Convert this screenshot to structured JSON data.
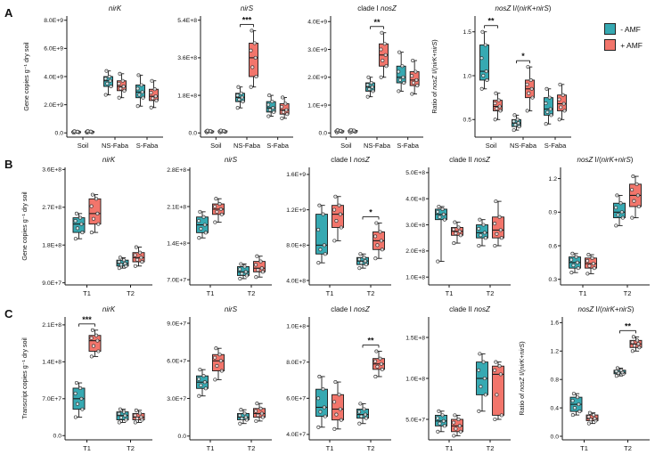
{
  "panels": {
    "a": "A",
    "b": "B",
    "c": "C"
  },
  "legend": {
    "items": [
      {
        "key": "neg",
        "label": "- AMF"
      },
      {
        "key": "pos",
        "label": "+ AMF"
      }
    ]
  },
  "colors": {
    "neg": "#36A9B2",
    "pos": "#F2756B",
    "axis": "#1a1a1a"
  },
  "chart_data": [
    {
      "id": "a-nirk",
      "panel": "A",
      "type": "box",
      "title": [
        [
          "nirK",
          1
        ]
      ],
      "ylabel": [
        [
          "Gene copies g⁻¹ dry soil",
          0
        ]
      ],
      "ylim": [
        -300000000.0,
        8300000000.0
      ],
      "yticks": [
        [
          0,
          "0.0"
        ],
        [
          2000000000.0,
          "2.0E+9"
        ],
        [
          4000000000.0,
          "4.0E+9"
        ],
        [
          6000000000.0,
          "6.0E+9"
        ],
        [
          8000000000.0,
          "8.0E+9"
        ]
      ],
      "cats": [
        "Soil",
        "NS-Faba",
        "S-Faba"
      ],
      "neg": [
        [
          20000000.0,
          40000000.0,
          60000000.0,
          90000000.0,
          120000000.0
        ],
        [
          2700000000.0,
          3300000000.0,
          3700000000.0,
          4000000000.0,
          4400000000.0
        ],
        [
          1900000000.0,
          2500000000.0,
          2900000000.0,
          3400000000.0,
          4100000000.0
        ]
      ],
      "pos": [
        [
          20000000.0,
          40000000.0,
          70000000.0,
          100000000.0,
          130000000.0
        ],
        [
          2500000000.0,
          3000000000.0,
          3300000000.0,
          3700000000.0,
          4200000000.0
        ],
        [
          1800000000.0,
          2300000000.0,
          2600000000.0,
          3100000000.0,
          3700000000.0
        ]
      ],
      "sig": []
    },
    {
      "id": "a-nirs",
      "panel": "A",
      "type": "box",
      "title": [
        [
          "nirS",
          1
        ]
      ],
      "ylabel": null,
      "ylim": [
        -20000000.0,
        560000000.0
      ],
      "yticks": [
        [
          0,
          "0.0"
        ],
        [
          180000000.0,
          "1.8E+8"
        ],
        [
          360000000.0,
          "3.6E+8"
        ],
        [
          540000000.0,
          "5.4E+8"
        ]
      ],
      "cats": [
        "Soil",
        "NS-Faba",
        "S-Faba"
      ],
      "neg": [
        [
          3000000.0,
          5000000.0,
          7000000.0,
          9000000.0,
          11000000.0
        ],
        [
          120000000.0,
          150000000.0,
          170000000.0,
          190000000.0,
          220000000.0
        ],
        [
          80000000.0,
          100000000.0,
          120000000.0,
          150000000.0,
          180000000.0
        ]
      ],
      "pos": [
        [
          3000000.0,
          5000000.0,
          7000000.0,
          10000000.0,
          12000000.0
        ],
        [
          220000000.0,
          270000000.0,
          360000000.0,
          430000000.0,
          490000000.0
        ],
        [
          70000000.0,
          90000000.0,
          110000000.0,
          140000000.0,
          170000000.0
        ]
      ],
      "sig": [
        [
          1,
          "***"
        ]
      ]
    },
    {
      "id": "a-clade1-nosz",
      "panel": "A",
      "type": "box",
      "title": [
        [
          "clade I ",
          0
        ],
        [
          "nosZ",
          1
        ]
      ],
      "ylabel": null,
      "ylim": [
        -150000000.0,
        4200000000.0
      ],
      "yticks": [
        [
          0,
          "0.0"
        ],
        [
          1000000000.0,
          "1.0E+9"
        ],
        [
          2000000000.0,
          "2.0E+9"
        ],
        [
          3000000000.0,
          "3.0E+9"
        ],
        [
          4000000000.0,
          "4.0E+9"
        ]
      ],
      "cats": [
        "Soil",
        "NS-Faba",
        "S-Faba"
      ],
      "neg": [
        [
          20000000.0,
          40000000.0,
          60000000.0,
          80000000.0,
          100000000.0
        ],
        [
          1300000000.0,
          1500000000.0,
          1650000000.0,
          1800000000.0,
          2000000000.0
        ],
        [
          1500000000.0,
          1800000000.0,
          2000000000.0,
          2400000000.0,
          2900000000.0
        ]
      ],
      "pos": [
        [
          20000000.0,
          40000000.0,
          60000000.0,
          90000000.0,
          110000000.0
        ],
        [
          2000000000.0,
          2400000000.0,
          2800000000.0,
          3200000000.0,
          3600000000.0
        ],
        [
          1400000000.0,
          1700000000.0,
          1900000000.0,
          2200000000.0,
          2600000000.0
        ]
      ],
      "sig": [
        [
          1,
          "**"
        ]
      ]
    },
    {
      "id": "a-ratio",
      "panel": "A",
      "type": "box",
      "title": [
        [
          "nosZ",
          1
        ],
        [
          " I/(",
          0
        ],
        [
          "nirK",
          1
        ],
        [
          "+",
          0
        ],
        [
          "nirS",
          1
        ],
        [
          ")",
          0
        ]
      ],
      "ylabel": [
        [
          "Ratio of ",
          0
        ],
        [
          "nosZ",
          1
        ],
        [
          " I/(",
          0
        ],
        [
          "nirK",
          1
        ],
        [
          "+",
          0
        ],
        [
          "nirS",
          1
        ],
        [
          ")",
          0
        ]
      ],
      "ylim": [
        0.3,
        1.68
      ],
      "yticks": [
        [
          0.5,
          "0.5"
        ],
        [
          1.0,
          "1.0"
        ],
        [
          1.5,
          "1.5"
        ]
      ],
      "cats": [
        "Soil",
        "NS-Faba",
        "S-Faba"
      ],
      "neg": [
        [
          0.85,
          0.95,
          1.05,
          1.35,
          1.5
        ],
        [
          0.38,
          0.42,
          0.46,
          0.5,
          0.55
        ],
        [
          0.45,
          0.55,
          0.62,
          0.75,
          0.85
        ]
      ],
      "pos": [
        [
          0.5,
          0.6,
          0.65,
          0.72,
          0.8
        ],
        [
          0.6,
          0.75,
          0.85,
          0.95,
          1.1
        ],
        [
          0.5,
          0.6,
          0.68,
          0.78,
          0.9
        ]
      ],
      "sig": [
        [
          0,
          "**"
        ],
        [
          1,
          "*"
        ]
      ]
    },
    {
      "id": "b-nirk",
      "panel": "B",
      "type": "box",
      "title": [
        [
          "nirK",
          1
        ]
      ],
      "ylabel": [
        [
          "Gene copies g⁻¹ dry soil",
          0
        ]
      ],
      "ylim": [
        85000000.0,
        365000000.0
      ],
      "yticks": [
        [
          90000000.0,
          "9.0E+7"
        ],
        [
          180000000.0,
          "1.8E+8"
        ],
        [
          270000000.0,
          "2.7E+8"
        ],
        [
          360000000.0,
          "3.6E+8"
        ]
      ],
      "cats": [
        "T1",
        "T2"
      ],
      "neg": [
        [
          195000000.0,
          210000000.0,
          230000000.0,
          245000000.0,
          255000000.0
        ],
        [
          125000000.0,
          130000000.0,
          136000000.0,
          144000000.0,
          150000000.0
        ]
      ],
      "pos": [
        [
          210000000.0,
          230000000.0,
          255000000.0,
          290000000.0,
          300000000.0
        ],
        [
          130000000.0,
          140000000.0,
          150000000.0,
          162000000.0,
          175000000.0
        ]
      ],
      "sig": []
    },
    {
      "id": "b-nirs",
      "panel": "B",
      "type": "box",
      "title": [
        [
          "nirS",
          1
        ]
      ],
      "ylabel": null,
      "ylim": [
        60000000.0,
        285000000.0
      ],
      "yticks": [
        [
          70000000.0,
          "7.0E+7"
        ],
        [
          140000000.0,
          "1.4E+8"
        ],
        [
          210000000.0,
          "2.1E+8"
        ],
        [
          280000000.0,
          "2.8E+8"
        ]
      ],
      "cats": [
        "T1",
        "T2"
      ],
      "neg": [
        [
          150000000.0,
          160000000.0,
          175000000.0,
          190000000.0,
          200000000.0
        ],
        [
          72000000.0,
          78000000.0,
          85000000.0,
          95000000.0,
          100000000.0
        ]
      ],
      "pos": [
        [
          180000000.0,
          195000000.0,
          205000000.0,
          215000000.0,
          225000000.0
        ],
        [
          75000000.0,
          85000000.0,
          92000000.0,
          105000000.0,
          115000000.0
        ]
      ],
      "sig": []
    },
    {
      "id": "b-clade1-nosz",
      "panel": "B",
      "type": "box",
      "title": [
        [
          "clade I ",
          0
        ],
        [
          "nosZ",
          1
        ]
      ],
      "ylabel": null,
      "ylim": [
        350000000.0,
        1680000000.0
      ],
      "yticks": [
        [
          400000000.0,
          "4.0E+8"
        ],
        [
          800000000.0,
          "8.0E+8"
        ],
        [
          1200000000.0,
          "1.2E+9"
        ],
        [
          1600000000.0,
          "1.6E+9"
        ]
      ],
      "cats": [
        "T1",
        "T2"
      ],
      "neg": [
        [
          600000000.0,
          700000000.0,
          800000000.0,
          1150000000.0,
          1250000000.0
        ],
        [
          540000000.0,
          580000000.0,
          620000000.0,
          660000000.0,
          700000000.0
        ]
      ],
      "pos": [
        [
          850000000.0,
          1000000000.0,
          1150000000.0,
          1250000000.0,
          1350000000.0
        ],
        [
          650000000.0,
          750000000.0,
          850000000.0,
          950000000.0,
          1050000000.0
        ]
      ],
      "sig": [
        [
          1,
          "*"
        ]
      ]
    },
    {
      "id": "b-clade2-nosz",
      "panel": "B",
      "type": "box",
      "title": [
        [
          "clade II ",
          0
        ],
        [
          "nosZ",
          1
        ]
      ],
      "ylabel": null,
      "ylim": [
        70000000.0,
        520000000.0
      ],
      "yticks": [
        [
          100000000.0,
          "1.0E+8"
        ],
        [
          200000000.0,
          "2.0E+8"
        ],
        [
          300000000.0,
          "3.0E+8"
        ],
        [
          400000000.0,
          "4.0E+8"
        ],
        [
          500000000.0,
          "5.0E+8"
        ]
      ],
      "cats": [
        "T1",
        "T2"
      ],
      "neg": [
        [
          160000000.0,
          320000000.0,
          340000000.0,
          360000000.0,
          370000000.0
        ],
        [
          220000000.0,
          250000000.0,
          270000000.0,
          300000000.0,
          320000000.0
        ]
      ],
      "pos": [
        [
          230000000.0,
          260000000.0,
          275000000.0,
          290000000.0,
          310000000.0
        ],
        [
          220000000.0,
          250000000.0,
          280000000.0,
          330000000.0,
          390000000.0
        ]
      ],
      "sig": []
    },
    {
      "id": "b-ratio",
      "panel": "B",
      "type": "box",
      "title": [
        [
          "nosZ",
          1
        ],
        [
          " I/(",
          0
        ],
        [
          "nirK",
          1
        ],
        [
          "+",
          0
        ],
        [
          "nirS",
          1
        ],
        [
          ")",
          0
        ]
      ],
      "ylabel": null,
      "ylim": [
        0.25,
        1.3
      ],
      "yticks": [
        [
          0.3,
          "0.3"
        ],
        [
          0.6,
          "0.6"
        ],
        [
          0.9,
          "0.9"
        ],
        [
          1.2,
          "1.2"
        ]
      ],
      "cats": [
        "T1",
        "T2"
      ],
      "neg": [
        [
          0.36,
          0.4,
          0.45,
          0.5,
          0.53
        ],
        [
          0.78,
          0.85,
          0.9,
          0.98,
          1.05
        ]
      ],
      "pos": [
        [
          0.35,
          0.4,
          0.44,
          0.49,
          0.52
        ],
        [
          0.85,
          0.95,
          1.05,
          1.15,
          1.22
        ]
      ],
      "sig": []
    },
    {
      "id": "c-nirk",
      "panel": "C",
      "type": "box",
      "title": [
        [
          "nirK",
          1
        ]
      ],
      "ylabel": [
        [
          "Transcript copies g⁻¹ dry soil",
          0
        ]
      ],
      "ylim": [
        -8000000.0,
        225000000.0
      ],
      "yticks": [
        [
          0,
          "0.0"
        ],
        [
          70000000.0,
          "7.0E+7"
        ],
        [
          140000000.0,
          "1.4E+8"
        ],
        [
          210000000.0,
          "2.1E+8"
        ]
      ],
      "cats": [
        "T1",
        "T2"
      ],
      "neg": [
        [
          35000000.0,
          50000000.0,
          70000000.0,
          90000000.0,
          100000000.0
        ],
        [
          25000000.0,
          30000000.0,
          38000000.0,
          45000000.0,
          50000000.0
        ]
      ],
      "pos": [
        [
          150000000.0,
          160000000.0,
          180000000.0,
          190000000.0,
          200000000.0
        ],
        [
          25000000.0,
          30000000.0,
          35000000.0,
          42000000.0,
          48000000.0
        ]
      ],
      "sig": [
        [
          0,
          "***"
        ]
      ]
    },
    {
      "id": "c-nirs",
      "panel": "C",
      "type": "box",
      "title": [
        [
          "nirS",
          1
        ]
      ],
      "ylabel": null,
      "ylim": [
        -3000000.0,
        95000000.0
      ],
      "yticks": [
        [
          0,
          "0.0"
        ],
        [
          30000000.0,
          "3.0E+7"
        ],
        [
          60000000.0,
          "6.0E+7"
        ],
        [
          90000000.0,
          "9.0E+7"
        ]
      ],
      "cats": [
        "T1",
        "T2"
      ],
      "neg": [
        [
          32000000.0,
          38000000.0,
          43000000.0,
          48000000.0,
          53000000.0
        ],
        [
          10000000.0,
          13000000.0,
          15000000.0,
          18000000.0,
          21000000.0
        ]
      ],
      "pos": [
        [
          45000000.0,
          52000000.0,
          60000000.0,
          65000000.0,
          70000000.0
        ],
        [
          12000000.0,
          15000000.0,
          18000000.0,
          22000000.0,
          26000000.0
        ]
      ],
      "sig": []
    },
    {
      "id": "c-clade1-nosz",
      "panel": "C",
      "type": "box",
      "title": [
        [
          "clade I ",
          0
        ],
        [
          "nosZ",
          1
        ]
      ],
      "ylabel": null,
      "ylim": [
        37000000.0,
        105000000.0
      ],
      "yticks": [
        [
          40000000.0,
          "4.0E+7"
        ],
        [
          60000000.0,
          "6.0E+7"
        ],
        [
          80000000.0,
          "8.0E+7"
        ],
        [
          100000000.0,
          "1.0E+8"
        ]
      ],
      "cats": [
        "T1",
        "T2"
      ],
      "neg": [
        [
          44000000.0,
          50000000.0,
          55000000.0,
          65000000.0,
          72000000.0
        ],
        [
          46000000.0,
          49000000.0,
          51000000.0,
          54000000.0,
          57000000.0
        ]
      ],
      "pos": [
        [
          43000000.0,
          48000000.0,
          54000000.0,
          62000000.0,
          69000000.0
        ],
        [
          72000000.0,
          76000000.0,
          79000000.0,
          82000000.0,
          86000000.0
        ]
      ],
      "sig": [
        [
          1,
          "**"
        ]
      ]
    },
    {
      "id": "c-clade2-nosz",
      "panel": "C",
      "type": "box",
      "title": [
        [
          "clade II ",
          0
        ],
        [
          "nosZ",
          1
        ]
      ],
      "ylabel": null,
      "ylim": [
        25000000.0,
        175000000.0
      ],
      "yticks": [
        [
          50000000.0,
          "5.0E+7"
        ],
        [
          100000000.0,
          "1.0E+8"
        ],
        [
          150000000.0,
          "1.5E+8"
        ]
      ],
      "cats": [
        "T1",
        "T2"
      ],
      "neg": [
        [
          35000000.0,
          42000000.0,
          48000000.0,
          55000000.0,
          60000000.0
        ],
        [
          60000000.0,
          80000000.0,
          100000000.0,
          120000000.0,
          130000000.0
        ]
      ],
      "pos": [
        [
          30000000.0,
          35000000.0,
          42000000.0,
          50000000.0,
          55000000.0
        ],
        [
          50000000.0,
          55000000.0,
          105000000.0,
          115000000.0,
          120000000.0
        ]
      ],
      "sig": []
    },
    {
      "id": "c-ratio",
      "panel": "C",
      "type": "box",
      "title": [
        [
          "nosZ",
          1
        ],
        [
          " I/(",
          0
        ],
        [
          "nirK",
          1
        ],
        [
          "+",
          0
        ],
        [
          "nirS",
          1
        ],
        [
          ")",
          0
        ]
      ],
      "ylabel": [
        [
          "Ratio of ",
          0
        ],
        [
          "nosZ",
          1
        ],
        [
          " I/(",
          0
        ],
        [
          "nirK",
          1
        ],
        [
          "+",
          0
        ],
        [
          "nirS",
          1
        ],
        [
          ")",
          0
        ]
      ],
      "ylim": [
        -0.05,
        1.68
      ],
      "yticks": [
        [
          0,
          "0.0"
        ],
        [
          0.4,
          "0.4"
        ],
        [
          0.8,
          "0.8"
        ],
        [
          1.2,
          "1.2"
        ],
        [
          1.6,
          "1.6"
        ]
      ],
      "cats": [
        "T1",
        "T2"
      ],
      "neg": [
        [
          0.3,
          0.35,
          0.45,
          0.55,
          0.6
        ],
        [
          0.85,
          0.88,
          0.9,
          0.93,
          0.96
        ]
      ],
      "pos": [
        [
          0.18,
          0.22,
          0.25,
          0.3,
          0.33
        ],
        [
          1.2,
          1.25,
          1.3,
          1.35,
          1.4
        ]
      ],
      "sig": [
        [
          1,
          "**"
        ]
      ]
    }
  ]
}
